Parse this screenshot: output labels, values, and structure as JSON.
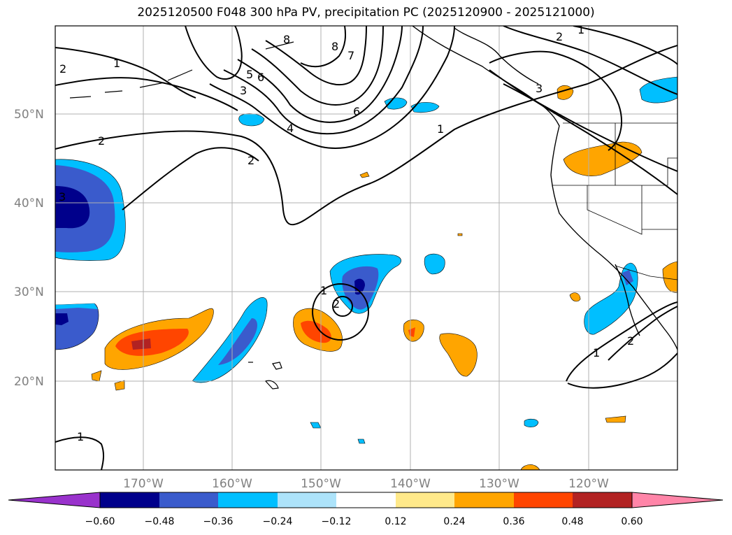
{
  "title": "2025120500 F048 300 hPa PV, precipitation PC (2025120900 - 2025121000)",
  "map": {
    "lat_labels": [
      "50°N",
      "40°N",
      "30°N",
      "20°N"
    ],
    "lon_labels": [
      "170°W",
      "160°W",
      "150°W",
      "140°W",
      "130°W",
      "120°W"
    ],
    "contour_labels": [
      "1",
      "2",
      "2",
      "3",
      "4",
      "5",
      "6",
      "6",
      "7",
      "8",
      "8",
      "1",
      "2",
      "3",
      "2",
      "1",
      "1",
      "2",
      "1",
      "2",
      "1",
      "2",
      "3",
      "1",
      "1"
    ]
  },
  "colorbar": {
    "ticks": [
      "−0.60",
      "−0.48",
      "−0.36",
      "−0.24",
      "−0.12",
      "0.12",
      "0.24",
      "0.36",
      "0.48",
      "0.60"
    ],
    "colors": {
      "under": "#9932CC",
      "bins": [
        "#00008B",
        "#3A5BCC",
        "#00BFFF",
        "#ADE3FA",
        "#FFFFFF",
        "#FFE98A",
        "#FFA500",
        "#FF4500",
        "#B22222",
        "#FF85A8"
      ]
    }
  },
  "colors": {
    "neg1": "#00BFFF",
    "neg2": "#3A5BCC",
    "neg3": "#00008B",
    "pos1": "#FFA500",
    "pos2": "#FF4500",
    "pos3": "#B22222"
  }
}
